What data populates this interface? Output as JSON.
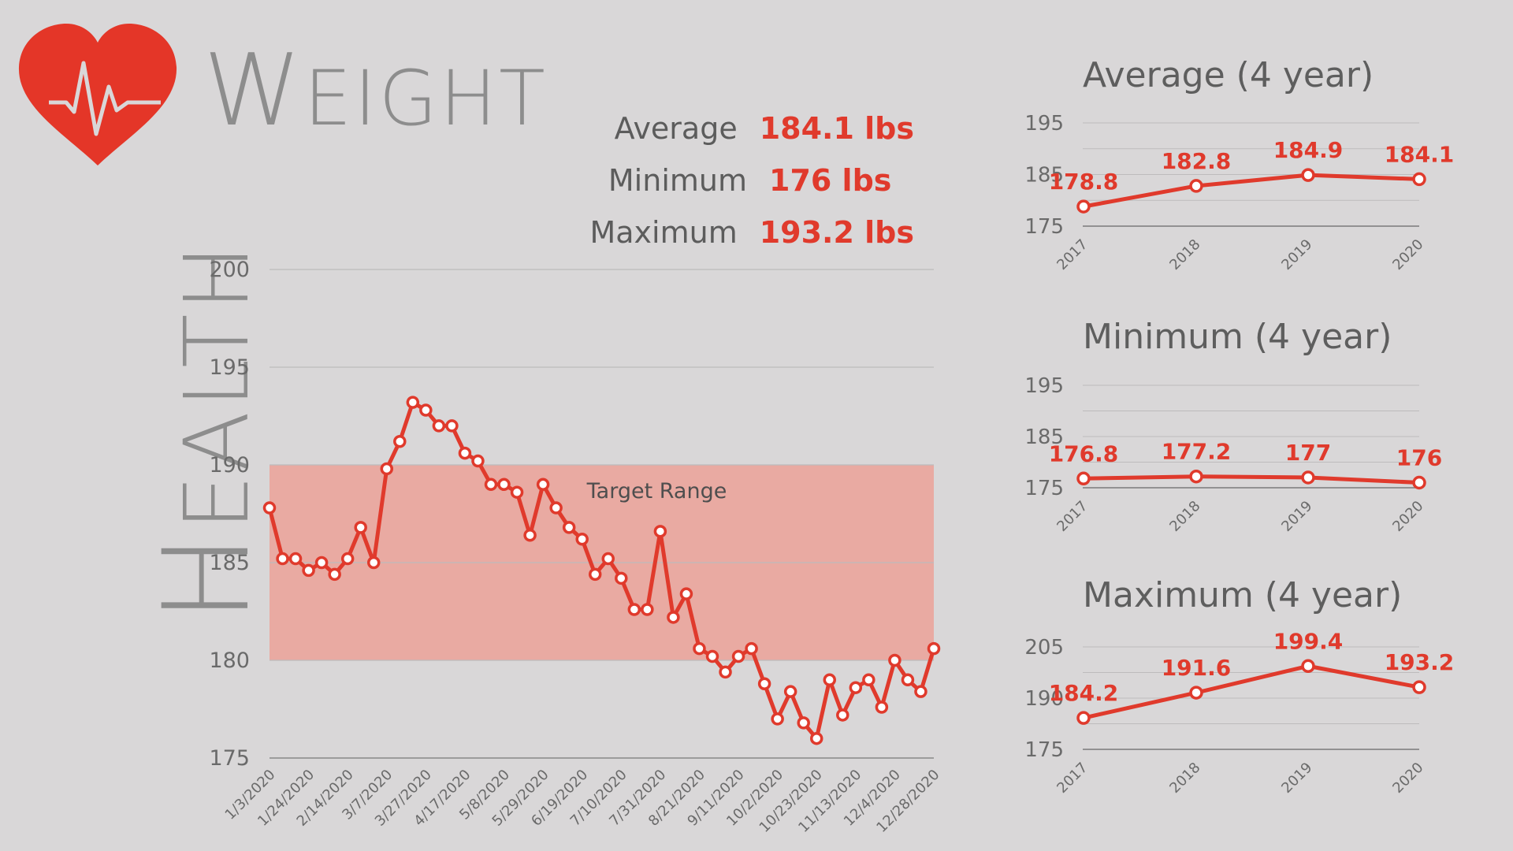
{
  "page": {
    "vertical_title_first": "H",
    "vertical_title_rest": "EALTH",
    "title_first": "W",
    "title_rest": "EIGHT"
  },
  "stats": [
    {
      "label": "Average",
      "value": "184.1 lbs"
    },
    {
      "label": "Minimum",
      "value": "176 lbs"
    },
    {
      "label": "Maximum",
      "value": "193.2 lbs"
    }
  ],
  "colors": {
    "accent": "#e03a2c",
    "band": "#e9aaa2",
    "heart": "#e43628",
    "grid": "#bdbbbc"
  },
  "icons": {
    "logo": "heart-pulse-icon"
  },
  "chart_data": [
    {
      "type": "line",
      "title": "Weight",
      "ylim": [
        175,
        200
      ],
      "yticks": [
        175,
        180,
        185,
        190,
        195,
        200
      ],
      "band": {
        "label": "Target Range",
        "from": 180,
        "to": 190
      },
      "xticklabels": [
        "1/3/2020",
        "1/24/2020",
        "2/14/2020",
        "3/7/2020",
        "3/27/2020",
        "4/17/2020",
        "5/8/2020",
        "5/29/2020",
        "6/19/2020",
        "7/10/2020",
        "7/31/2020",
        "8/21/2020",
        "9/11/2020",
        "10/2/2020",
        "10/23/2020",
        "11/13/2020",
        "12/4/2020",
        "12/28/2020"
      ],
      "values": [
        187.8,
        185.2,
        185.2,
        184.6,
        185.0,
        184.4,
        185.2,
        186.8,
        185.0,
        189.8,
        191.2,
        193.2,
        192.8,
        192.0,
        192.0,
        190.6,
        190.2,
        189.0,
        189.0,
        188.6,
        186.4,
        189.0,
        187.8,
        186.8,
        186.2,
        184.4,
        185.2,
        184.2,
        182.6,
        182.6,
        186.6,
        182.2,
        183.4,
        180.6,
        180.2,
        179.4,
        180.2,
        180.6,
        178.8,
        177.0,
        178.4,
        176.8,
        176.0,
        179.0,
        177.2,
        178.6,
        179.0,
        177.6,
        180.0,
        179.0,
        178.4,
        180.6
      ]
    },
    {
      "type": "line",
      "title": "Average (4 year)",
      "categories": [
        "2017",
        "2018",
        "2019",
        "2020"
      ],
      "values": [
        178.8,
        182.8,
        184.9,
        184.1
      ],
      "data_labels": [
        "178.8",
        "182.8",
        "184.9",
        "184.1"
      ],
      "ylim": [
        175,
        195
      ],
      "yticks": [
        175,
        185,
        195
      ]
    },
    {
      "type": "line",
      "title": "Minimum (4 year)",
      "categories": [
        "2017",
        "2018",
        "2019",
        "2020"
      ],
      "values": [
        176.8,
        177.2,
        177,
        176
      ],
      "data_labels": [
        "176.8",
        "177.2",
        "177",
        "176"
      ],
      "ylim": [
        175,
        195
      ],
      "yticks": [
        175,
        185,
        195
      ]
    },
    {
      "type": "line",
      "title": "Maximum (4 year)",
      "categories": [
        "2017",
        "2018",
        "2019",
        "2020"
      ],
      "values": [
        184.2,
        191.6,
        199.4,
        193.2
      ],
      "data_labels": [
        "184.2",
        "191.6",
        "199.4",
        "193.2"
      ],
      "ylim": [
        175,
        205
      ],
      "yticks": [
        175,
        190,
        205
      ]
    }
  ]
}
